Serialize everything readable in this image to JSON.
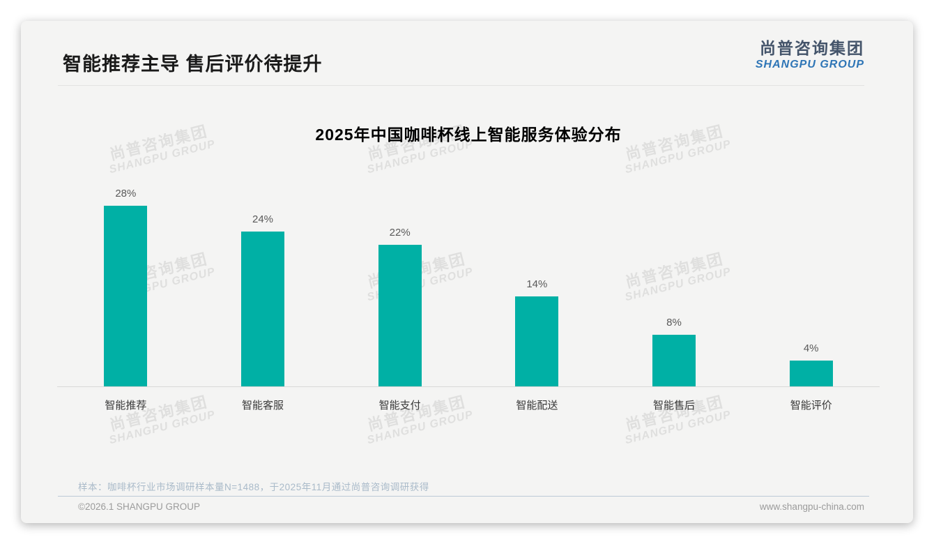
{
  "header": {
    "title": "智能推荐主导 售后评价待提升"
  },
  "logo": {
    "cn": "尚普咨询集团",
    "en": "SHANGPU GROUP"
  },
  "watermark": {
    "cn": "尚普咨询集团",
    "en": "SHANGPU GROUP"
  },
  "chart_data": {
    "type": "bar",
    "title": "2025年中国咖啡杯线上智能服务体验分布",
    "categories": [
      "智能推荐",
      "智能客服",
      "智能支付",
      "智能配送",
      "智能售后",
      "智能评价"
    ],
    "values": [
      28,
      24,
      22,
      14,
      8,
      4
    ],
    "value_labels": [
      "28%",
      "24%",
      "22%",
      "14%",
      "8%",
      "4%"
    ],
    "unit": "%",
    "xlabel": "",
    "ylabel": "",
    "ylim": [
      0,
      30
    ],
    "bar_color": "#00b0a5",
    "grid": false,
    "legend": false,
    "value_label_position": "above-bar",
    "baseline_axis": true
  },
  "note": "样本：咖啡杯行业市场调研样本量N=1488，于2025年11月通过尚普咨询调研获得",
  "footer": {
    "left": "©2026.1 SHANGPU GROUP",
    "right": "www.shangpu-china.com"
  }
}
